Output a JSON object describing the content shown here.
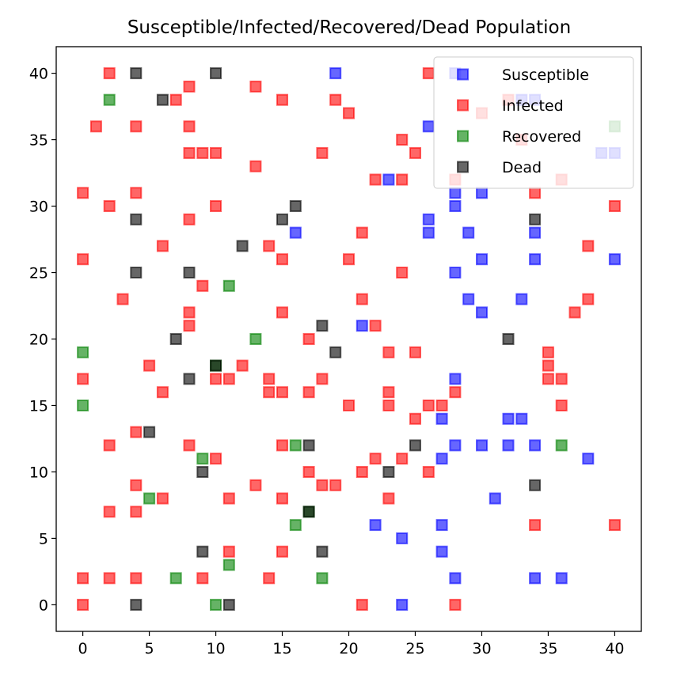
{
  "chart_data": {
    "type": "scatter",
    "title": "Susceptible/Infected/Recovered/Dead Population",
    "xlabel": "",
    "ylabel": "",
    "xlim": [
      -2,
      42
    ],
    "ylim": [
      -2,
      42
    ],
    "xticks": [
      0,
      5,
      10,
      15,
      20,
      25,
      30,
      35,
      40
    ],
    "yticks": [
      0,
      5,
      10,
      15,
      20,
      25,
      30,
      35,
      40
    ],
    "grid": false,
    "legend_position": "top-right",
    "marker": "square",
    "series": [
      {
        "name": "Susceptible",
        "color": "#0000ff",
        "points": [
          [
            19,
            40
          ],
          [
            28,
            40
          ],
          [
            33,
            38
          ],
          [
            34,
            38
          ],
          [
            26,
            36
          ],
          [
            39,
            34
          ],
          [
            40,
            34
          ],
          [
            23,
            32
          ],
          [
            28,
            31
          ],
          [
            30,
            31
          ],
          [
            28,
            30
          ],
          [
            26,
            29
          ],
          [
            26,
            28
          ],
          [
            16,
            28
          ],
          [
            29,
            28
          ],
          [
            34,
            28
          ],
          [
            30,
            26
          ],
          [
            34,
            26
          ],
          [
            40,
            26
          ],
          [
            28,
            25
          ],
          [
            29,
            23
          ],
          [
            33,
            23
          ],
          [
            30,
            22
          ],
          [
            21,
            21
          ],
          [
            28,
            17
          ],
          [
            27,
            14
          ],
          [
            32,
            14
          ],
          [
            33,
            14
          ],
          [
            28,
            12
          ],
          [
            30,
            12
          ],
          [
            32,
            12
          ],
          [
            34,
            12
          ],
          [
            38,
            11
          ],
          [
            27,
            11
          ],
          [
            31,
            8
          ],
          [
            22,
            6
          ],
          [
            27,
            6
          ],
          [
            24,
            5
          ],
          [
            27,
            4
          ],
          [
            28,
            2
          ],
          [
            34,
            2
          ],
          [
            36,
            2
          ],
          [
            24,
            0
          ]
        ]
      },
      {
        "name": "Infected",
        "color": "#ff0000",
        "points": [
          [
            2,
            40
          ],
          [
            26,
            40
          ],
          [
            8,
            39
          ],
          [
            13,
            39
          ],
          [
            7,
            38
          ],
          [
            15,
            38
          ],
          [
            19,
            38
          ],
          [
            32,
            38
          ],
          [
            20,
            37
          ],
          [
            30,
            37
          ],
          [
            1,
            36
          ],
          [
            4,
            36
          ],
          [
            8,
            36
          ],
          [
            24,
            35
          ],
          [
            33,
            35
          ],
          [
            8,
            34
          ],
          [
            9,
            34
          ],
          [
            10,
            34
          ],
          [
            18,
            34
          ],
          [
            25,
            34
          ],
          [
            13,
            33
          ],
          [
            22,
            32
          ],
          [
            24,
            32
          ],
          [
            28,
            32
          ],
          [
            36,
            32
          ],
          [
            0,
            31
          ],
          [
            4,
            31
          ],
          [
            34,
            31
          ],
          [
            2,
            30
          ],
          [
            10,
            30
          ],
          [
            40,
            30
          ],
          [
            8,
            29
          ],
          [
            21,
            28
          ],
          [
            6,
            27
          ],
          [
            14,
            27
          ],
          [
            38,
            27
          ],
          [
            0,
            26
          ],
          [
            15,
            26
          ],
          [
            20,
            26
          ],
          [
            9,
            24
          ],
          [
            24,
            25
          ],
          [
            3,
            23
          ],
          [
            21,
            23
          ],
          [
            8,
            22
          ],
          [
            15,
            22
          ],
          [
            38,
            23
          ],
          [
            37,
            22
          ],
          [
            8,
            21
          ],
          [
            22,
            21
          ],
          [
            17,
            20
          ],
          [
            23,
            19
          ],
          [
            25,
            19
          ],
          [
            35,
            19
          ],
          [
            5,
            18
          ],
          [
            12,
            18
          ],
          [
            35,
            18
          ],
          [
            0,
            17
          ],
          [
            10,
            17
          ],
          [
            11,
            17
          ],
          [
            14,
            17
          ],
          [
            18,
            17
          ],
          [
            35,
            17
          ],
          [
            36,
            17
          ],
          [
            6,
            16
          ],
          [
            14,
            16
          ],
          [
            15,
            16
          ],
          [
            17,
            16
          ],
          [
            23,
            16
          ],
          [
            28,
            16
          ],
          [
            20,
            15
          ],
          [
            23,
            15
          ],
          [
            26,
            15
          ],
          [
            27,
            15
          ],
          [
            36,
            15
          ],
          [
            25,
            14
          ],
          [
            4,
            13
          ],
          [
            2,
            12
          ],
          [
            8,
            12
          ],
          [
            15,
            12
          ],
          [
            10,
            11
          ],
          [
            22,
            11
          ],
          [
            24,
            11
          ],
          [
            17,
            10
          ],
          [
            21,
            10
          ],
          [
            26,
            10
          ],
          [
            4,
            9
          ],
          [
            13,
            9
          ],
          [
            18,
            9
          ],
          [
            19,
            9
          ],
          [
            6,
            8
          ],
          [
            11,
            8
          ],
          [
            15,
            8
          ],
          [
            23,
            8
          ],
          [
            2,
            7
          ],
          [
            4,
            7
          ],
          [
            34,
            6
          ],
          [
            40,
            6
          ],
          [
            11,
            4
          ],
          [
            15,
            4
          ],
          [
            0,
            2
          ],
          [
            2,
            2
          ],
          [
            4,
            2
          ],
          [
            9,
            2
          ],
          [
            14,
            2
          ],
          [
            0,
            0
          ],
          [
            21,
            0
          ],
          [
            28,
            0
          ]
        ]
      },
      {
        "name": "Recovered",
        "color": "#008000",
        "points": [
          [
            2,
            38
          ],
          [
            40,
            36
          ],
          [
            11,
            24
          ],
          [
            13,
            20
          ],
          [
            0,
            19
          ],
          [
            10,
            18
          ],
          [
            0,
            15
          ],
          [
            16,
            12
          ],
          [
            36,
            12
          ],
          [
            9,
            11
          ],
          [
            5,
            8
          ],
          [
            17,
            7
          ],
          [
            16,
            6
          ],
          [
            11,
            3
          ],
          [
            7,
            2
          ],
          [
            18,
            2
          ],
          [
            10,
            0
          ]
        ]
      },
      {
        "name": "Dead",
        "color": "#000000",
        "points": [
          [
            4,
            40
          ],
          [
            10,
            40
          ],
          [
            6,
            38
          ],
          [
            16,
            30
          ],
          [
            4,
            29
          ],
          [
            15,
            29
          ],
          [
            34,
            29
          ],
          [
            12,
            27
          ],
          [
            4,
            25
          ],
          [
            8,
            25
          ],
          [
            18,
            21
          ],
          [
            7,
            20
          ],
          [
            32,
            20
          ],
          [
            19,
            19
          ],
          [
            10,
            18
          ],
          [
            8,
            17
          ],
          [
            5,
            13
          ],
          [
            17,
            12
          ],
          [
            25,
            12
          ],
          [
            23,
            10
          ],
          [
            9,
            10
          ],
          [
            34,
            9
          ],
          [
            17,
            7
          ],
          [
            9,
            4
          ],
          [
            18,
            4
          ],
          [
            4,
            0
          ],
          [
            11,
            0
          ]
        ]
      }
    ]
  }
}
